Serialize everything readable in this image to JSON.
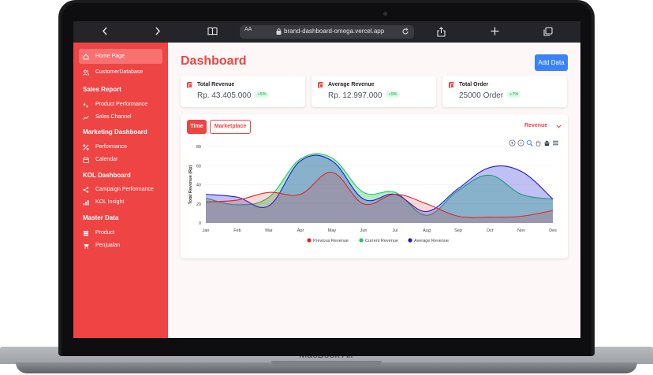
{
  "device": {
    "label": "MacBook Air"
  },
  "browser": {
    "text_size_label": "AA",
    "url": "brand-dashboard-omega.vercel.app"
  },
  "sidebar": {
    "items_top": [
      {
        "label": "Home Page",
        "icon": "home-icon",
        "active": true
      },
      {
        "label": "CustomerDatabase",
        "icon": "users-icon",
        "active": false
      }
    ],
    "sections": [
      {
        "title": "Sales Report",
        "items": [
          {
            "label": "Product Performance",
            "icon": "sparkle-icon"
          },
          {
            "label": "Sales Channel",
            "icon": "trend-icon"
          }
        ]
      },
      {
        "title": "Marketing Dashboard",
        "items": [
          {
            "label": "Performance",
            "icon": "percent-icon"
          },
          {
            "label": "Calendar",
            "icon": "calendar-icon"
          }
        ]
      },
      {
        "title": "KOL Dashboard",
        "items": [
          {
            "label": "Campaign Performance",
            "icon": "share-icon"
          },
          {
            "label": "KOL Insight",
            "icon": "signal-icon"
          }
        ]
      },
      {
        "title": "Master Data",
        "items": [
          {
            "label": "Product",
            "icon": "box-icon"
          },
          {
            "label": "Penjualan",
            "icon": "cart-icon"
          }
        ]
      }
    ]
  },
  "header": {
    "title": "Dashboard",
    "add_button": "Add Data"
  },
  "stats": [
    {
      "label": "Total Revenue",
      "value": "Rp. 43.405.000",
      "change": "+5%"
    },
    {
      "label": "Average Revenue",
      "value": "Rp. 12.997.000",
      "change": "+9%"
    },
    {
      "label": "Total Order",
      "value": "25000 Order",
      "change": "+7%"
    }
  ],
  "chart_card": {
    "tabs": [
      "Time",
      "Marketplace"
    ],
    "active_tab": "Time",
    "metric_select": "Revenue"
  },
  "colors": {
    "primary": "#ef4444",
    "sidebar_active": "#f87171",
    "button_blue": "#3b82f6",
    "previous": "#dc2626",
    "current": "#22c55e",
    "average": "#1d1dd8"
  },
  "chart_data": {
    "type": "area",
    "categories": [
      "Jan",
      "Feb",
      "Mar",
      "Apr",
      "May",
      "Jun",
      "Jul",
      "Aug",
      "Sep",
      "Oct",
      "Nov",
      "Des"
    ],
    "ylabel": "Total Revenue (Rp)",
    "ylim": [
      0,
      80
    ],
    "yticks": [
      0,
      20,
      40,
      60,
      80
    ],
    "grid": true,
    "legend_position": "bottom",
    "series": [
      {
        "name": "Previous Revenue",
        "values": [
          22,
          24,
          32,
          30,
          53,
          20,
          30,
          20,
          7,
          6,
          7,
          13
        ]
      },
      {
        "name": "Current Revenue",
        "values": [
          26,
          19,
          27,
          67,
          68,
          32,
          32,
          8,
          34,
          50,
          30,
          25
        ]
      },
      {
        "name": "Average Revenue",
        "values": [
          30,
          27,
          18,
          65,
          65,
          25,
          30,
          12,
          36,
          58,
          54,
          25
        ]
      }
    ]
  }
}
